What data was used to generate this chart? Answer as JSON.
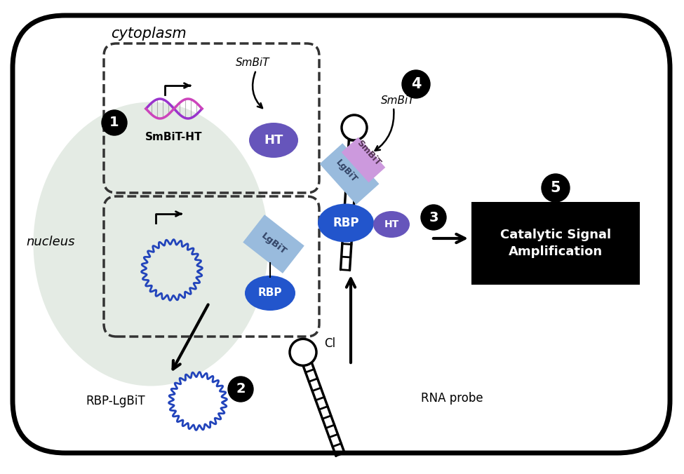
{
  "bg_color": "#ffffff",
  "nucleus_color": "#e0e8e0",
  "ht_purple_color": "#6655bb",
  "ht_light_color": "#8877cc",
  "rbp_blue_color": "#2255cc",
  "lgbit_color": "#99bbdd",
  "smbit_color": "#cc99dd",
  "rna_blue_color": "#2244bb",
  "dna_purple": "#9933cc",
  "dna_pink": "#cc44bb",
  "cytoplasm_text": "cytoplasm",
  "nucleus_text": "nucleus",
  "smbit_ht_text": "SmBiT-HT",
  "rbp_lgbit_text": "RBP-LgBiT",
  "rna_probe_text": "RNA probe",
  "catalytic_text": "Catalytic Signal\nAmplification",
  "cl_text": "Cl"
}
